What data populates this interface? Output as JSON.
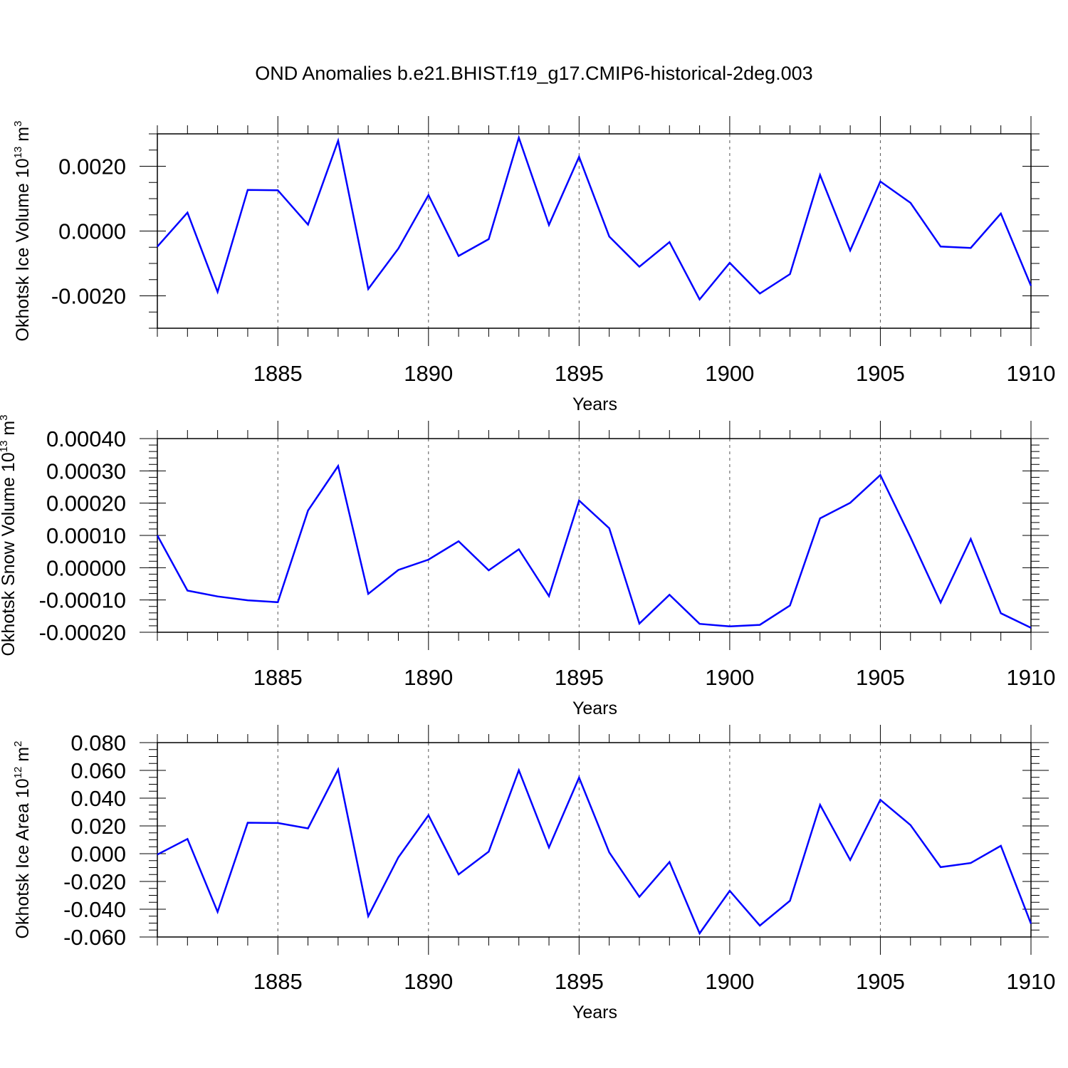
{
  "title": "OND Anomalies b.e21.BHIST.f19_g17.CMIP6-historical-2deg.003",
  "chart_data": [
    {
      "type": "line",
      "ylabel": "Okhotsk Ice Volume",
      "ylabel_unit_base": "10",
      "ylabel_unit_exp": "13",
      "ylabel_unit_name": "m",
      "ylabel_unit_name_exp": "3",
      "xlabel": "Years",
      "xlim": [
        1881,
        1910
      ],
      "ylim": [
        -0.003,
        0.003
      ],
      "x_ticks": [
        1885,
        1890,
        1895,
        1900,
        1905,
        1910
      ],
      "x_tick_labels": [
        "1885",
        "1890",
        "1895",
        "1900",
        "1905",
        "1910"
      ],
      "y_ticks": [
        -0.002,
        0.0,
        0.002
      ],
      "y_tick_labels": [
        "-0.0020",
        "0.0000",
        "0.0020"
      ],
      "y_minor_step": 0.0005,
      "line_color": "#0000ff",
      "x": [
        1881,
        1882,
        1883,
        1884,
        1885,
        1886,
        1887,
        1888,
        1889,
        1890,
        1891,
        1892,
        1893,
        1894,
        1895,
        1896,
        1897,
        1898,
        1899,
        1900,
        1901,
        1902,
        1903,
        1904,
        1905,
        1906,
        1907,
        1908,
        1909,
        1910
      ],
      "values": [
        -0.00048,
        0.00057,
        -0.00188,
        0.00127,
        0.00126,
        0.0002,
        0.00279,
        -0.00179,
        -0.00054,
        0.00111,
        -0.00077,
        -0.00025,
        0.00288,
        0.00019,
        0.00229,
        -0.00017,
        -0.0011,
        -0.00034,
        -0.00211,
        -0.00098,
        -0.00193,
        -0.00133,
        0.00173,
        -0.0006,
        0.00153,
        0.00087,
        -0.00048,
        -0.00052,
        0.00054,
        -0.00169
      ]
    },
    {
      "type": "line",
      "ylabel": "Okhotsk Snow Volume",
      "ylabel_unit_base": "10",
      "ylabel_unit_exp": "13",
      "ylabel_unit_name": "m",
      "ylabel_unit_name_exp": "3",
      "xlabel": "Years",
      "xlim": [
        1881,
        1910
      ],
      "ylim": [
        -0.0002,
        0.0004
      ],
      "x_ticks": [
        1885,
        1890,
        1895,
        1900,
        1905,
        1910
      ],
      "x_tick_labels": [
        "1885",
        "1890",
        "1895",
        "1900",
        "1905",
        "1910"
      ],
      "y_ticks": [
        -0.0002,
        -0.0001,
        0.0,
        0.0001,
        0.0002,
        0.0003,
        0.0004
      ],
      "y_tick_labels": [
        "-0.00020",
        "-0.00010",
        "0.00000",
        "0.00010",
        "0.00020",
        "0.00030",
        "0.00040"
      ],
      "y_minor_step": 2e-05,
      "line_color": "#0000ff",
      "x": [
        1881,
        1882,
        1883,
        1884,
        1885,
        1886,
        1887,
        1888,
        1889,
        1890,
        1891,
        1892,
        1893,
        1894,
        1895,
        1896,
        1897,
        1898,
        1899,
        1900,
        1901,
        1902,
        1903,
        1904,
        1905,
        1906,
        1907,
        1908,
        1909,
        1910
      ],
      "values": [
        0.0001,
        -7.1e-05,
        -8.9e-05,
        -0.000101,
        -0.000107,
        0.000177,
        0.000315,
        -8.1e-05,
        -7e-06,
        2.5e-05,
        8.2e-05,
        -8e-06,
        5.7e-05,
        -8.8e-05,
        0.000208,
        0.000122,
        -0.000173,
        -8.4e-05,
        -0.000174,
        -0.000182,
        -0.000177,
        -0.000117,
        0.000153,
        0.000201,
        0.000287,
        9.4e-05,
        -0.000108,
        8.9e-05,
        -0.000141,
        -0.000186
      ]
    },
    {
      "type": "line",
      "ylabel": "Okhotsk Ice Area",
      "ylabel_unit_base": "10",
      "ylabel_unit_exp": "12",
      "ylabel_unit_name": "m",
      "ylabel_unit_name_exp": "2",
      "xlabel": "Years",
      "xlim": [
        1881,
        1910
      ],
      "ylim": [
        -0.06,
        0.08
      ],
      "x_ticks": [
        1885,
        1890,
        1895,
        1900,
        1905,
        1910
      ],
      "x_tick_labels": [
        "1885",
        "1890",
        "1895",
        "1900",
        "1905",
        "1910"
      ],
      "y_ticks": [
        -0.06,
        -0.04,
        -0.02,
        0.0,
        0.02,
        0.04,
        0.06,
        0.08
      ],
      "y_tick_labels": [
        "-0.060",
        "-0.040",
        "-0.020",
        "0.000",
        "0.020",
        "0.040",
        "0.060",
        "0.080"
      ],
      "y_minor_step": 0.005,
      "line_color": "#0000ff",
      "x": [
        1881,
        1882,
        1883,
        1884,
        1885,
        1886,
        1887,
        1888,
        1889,
        1890,
        1891,
        1892,
        1893,
        1894,
        1895,
        1896,
        1897,
        1898,
        1899,
        1900,
        1901,
        1902,
        1903,
        1904,
        1905,
        1906,
        1907,
        1908,
        1909,
        1910
      ],
      "values": [
        -0.0006,
        0.0106,
        -0.0419,
        0.0223,
        0.0221,
        0.0182,
        0.0606,
        -0.045,
        -0.0026,
        0.0277,
        -0.0149,
        0.0015,
        0.0601,
        0.0045,
        0.0548,
        0.0009,
        -0.0311,
        -0.006,
        -0.0574,
        -0.0267,
        -0.0518,
        -0.0339,
        0.0352,
        -0.0045,
        0.0388,
        0.0206,
        -0.0097,
        -0.0067,
        0.0057,
        -0.0504
      ]
    }
  ]
}
